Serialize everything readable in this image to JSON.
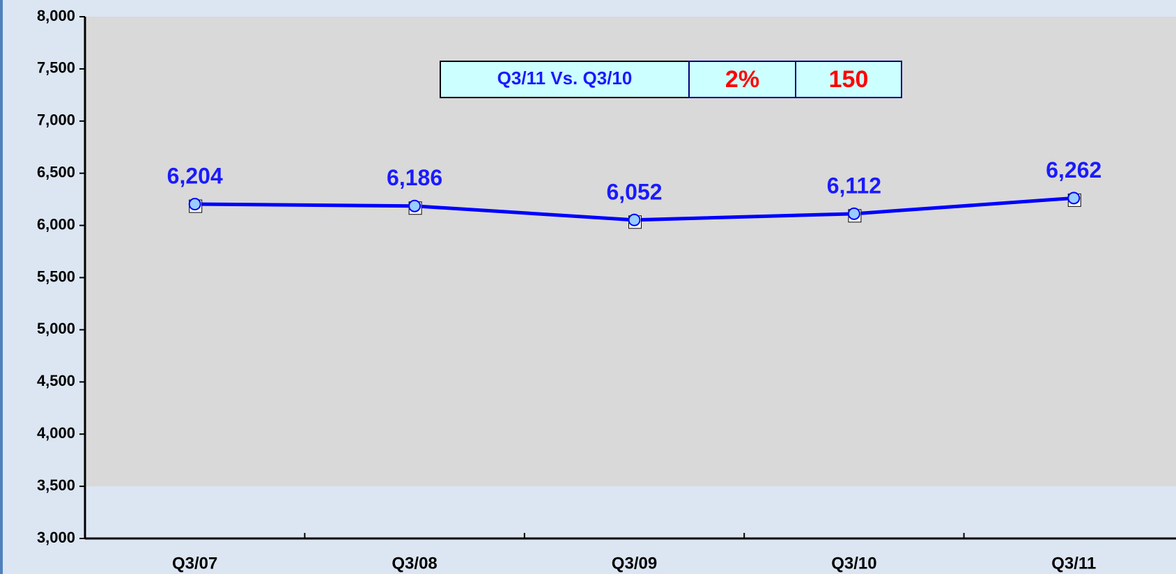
{
  "chart_data": {
    "type": "line",
    "categories": [
      "Q3/07",
      "Q3/08",
      "Q3/09",
      "Q3/10",
      "Q3/11"
    ],
    "series": [
      {
        "color": "#0000ff",
        "values": [
          6204,
          6186,
          6052,
          6112,
          6262
        ],
        "value_labels": [
          "6,204",
          "6,186",
          "6,052",
          "6,112",
          "6,262"
        ]
      }
    ],
    "ylim": [
      3000,
      8000
    ],
    "yticks": [
      {
        "value": 3000,
        "label": "3,000"
      },
      {
        "value": 3500,
        "label": "3,500"
      },
      {
        "value": 4000,
        "label": "4,000"
      },
      {
        "value": 4500,
        "label": "4,500"
      },
      {
        "value": 5000,
        "label": "5,000"
      },
      {
        "value": 5500,
        "label": "5,500"
      },
      {
        "value": 6000,
        "label": "6,000"
      },
      {
        "value": 6500,
        "label": "6,500"
      },
      {
        "value": 7000,
        "label": "7,000"
      },
      {
        "value": 7500,
        "label": "7,500"
      },
      {
        "value": 8000,
        "label": "8,000"
      }
    ],
    "plot_area_from": 3500,
    "comparison": {
      "label": "Q3/11 Vs. Q3/10",
      "values": [
        2,
        150
      ],
      "value_labels": [
        "2%",
        "150"
      ]
    }
  }
}
